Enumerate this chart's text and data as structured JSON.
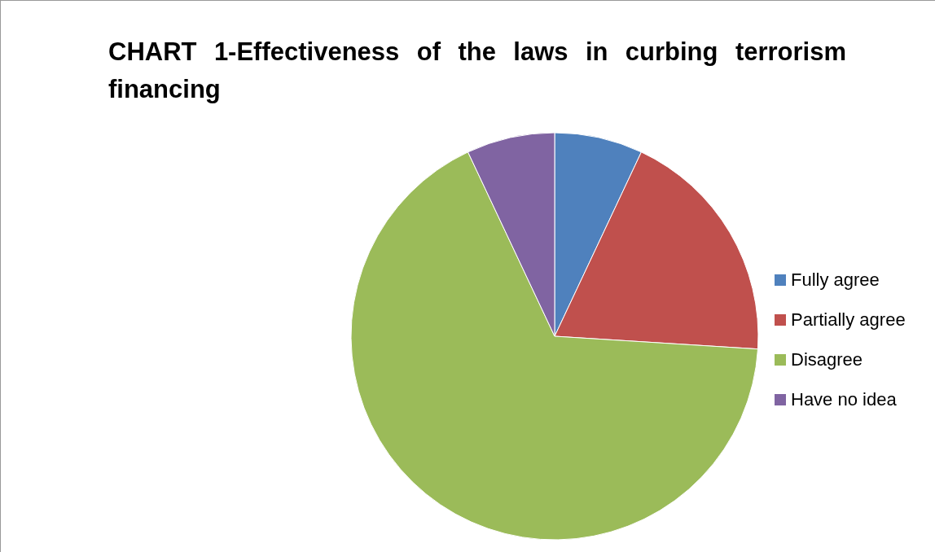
{
  "chart_data": {
    "type": "pie",
    "title": "CHART 1-Effectiveness of the laws in curbing terrorism financing",
    "categories": [
      "Fully agree",
      "Partially agree",
      "Disagree",
      "Have no idea"
    ],
    "values": [
      7,
      19,
      67,
      7
    ],
    "colors": [
      "#4f81bd",
      "#c0504d",
      "#9bbb59",
      "#8064a2"
    ],
    "legend": "right"
  }
}
